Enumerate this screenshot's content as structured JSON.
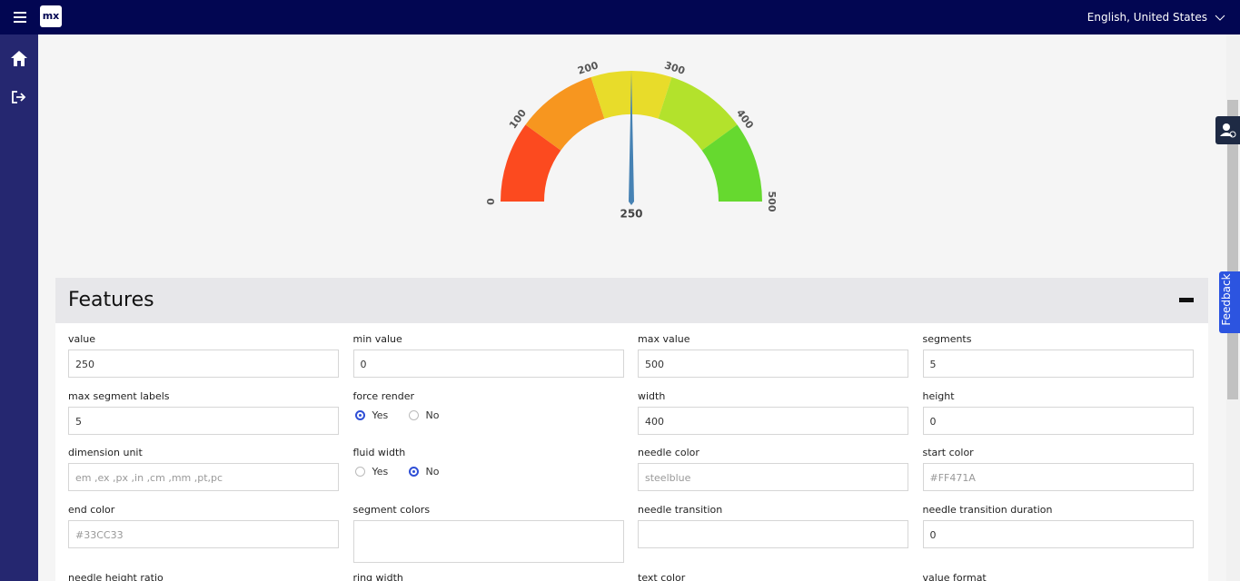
{
  "header": {
    "logo": "mx",
    "language": "English, United States"
  },
  "gauge": {
    "min": 0,
    "max": 500,
    "value": 250,
    "ticks": [
      0,
      100,
      200,
      300,
      400,
      500
    ],
    "segment_colors": [
      "#fc4a1f",
      "#f7961f",
      "#e8dc2a",
      "#b3e22c",
      "#66d92f"
    ],
    "needle_color": "#4682b4"
  },
  "side_tab": "Feedback",
  "panel": {
    "title": "Features",
    "fields": [
      {
        "label": "value",
        "value": "250"
      },
      {
        "label": "min value",
        "value": "0"
      },
      {
        "label": "max value",
        "value": "500"
      },
      {
        "label": "segments",
        "value": "5"
      },
      {
        "label": "max segment labels",
        "value": "5"
      },
      {
        "label": "force render",
        "options": [
          "Yes",
          "No"
        ],
        "selected": 0
      },
      {
        "label": "width",
        "value": "400"
      },
      {
        "label": "height",
        "value": "0"
      },
      {
        "label": "dimension unit",
        "placeholder": "em ,ex ,px ,in ,cm ,mm ,pt,pc"
      },
      {
        "label": "fluid width",
        "options": [
          "Yes",
          "No"
        ],
        "selected": 1
      },
      {
        "label": "needle color",
        "placeholder": "steelblue"
      },
      {
        "label": "start color",
        "placeholder": "#FF471A"
      },
      {
        "label": "end color",
        "placeholder": "#33CC33"
      },
      {
        "label": "segment colors",
        "multiline": true
      },
      {
        "label": "needle transition"
      },
      {
        "label": "needle transition duration",
        "value": "0"
      },
      {
        "label": "needle height ratio"
      },
      {
        "label": "ring width"
      },
      {
        "label": "text color"
      },
      {
        "label": "value format"
      }
    ]
  }
}
